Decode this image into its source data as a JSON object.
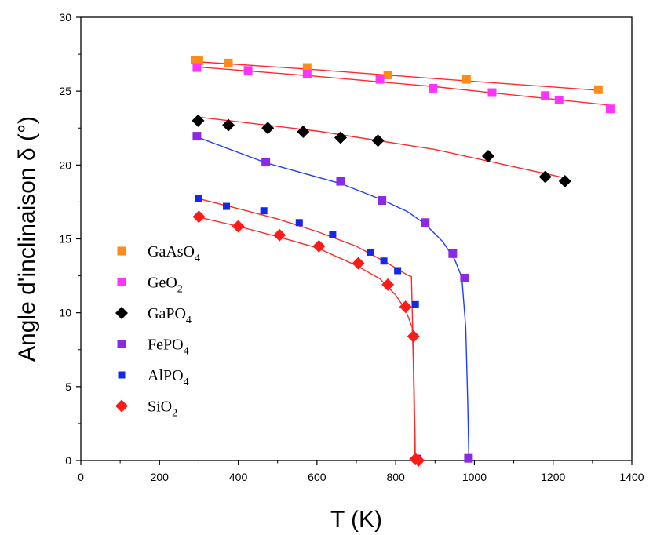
{
  "chart_data": {
    "type": "scatter",
    "xlabel": "T (K)",
    "ylabel": "Angle d'inclinaison δ (°)",
    "xlim": [
      0,
      1400
    ],
    "ylim": [
      0,
      30
    ],
    "xticks": [
      0,
      200,
      400,
      600,
      800,
      1000,
      1200,
      1400
    ],
    "yticks": [
      0,
      5,
      10,
      15,
      20,
      25,
      30
    ],
    "xtick_labels": [
      "0",
      "200",
      "400",
      "600",
      "800",
      "1000",
      "1200",
      "1400"
    ],
    "ytick_labels": [
      "0",
      "5",
      "10",
      "15",
      "20",
      "25",
      "30"
    ],
    "grid": false,
    "legend_position": "left",
    "series": [
      {
        "name": "GaAsO4",
        "label_main": "GaAsO",
        "label_sub": "4",
        "marker": "square",
        "color": "#ff8c1a",
        "fit_color": "#ff2a2a",
        "points": [
          [
            290,
            27.1
          ],
          [
            300,
            27.05
          ],
          [
            375,
            26.9
          ],
          [
            575,
            26.6
          ],
          [
            780,
            26.1
          ],
          [
            980,
            25.8
          ],
          [
            1315,
            25.1
          ]
        ],
        "fit": [
          [
            290,
            27.0
          ],
          [
            600,
            26.45
          ],
          [
            900,
            25.85
          ],
          [
            1320,
            25.05
          ]
        ]
      },
      {
        "name": "GeO2",
        "label_main": "GeO",
        "label_sub": "2",
        "marker": "square",
        "color": "#ff33ff",
        "fit_color": "#ff2a2a",
        "points": [
          [
            295,
            26.6
          ],
          [
            425,
            26.4
          ],
          [
            575,
            26.15
          ],
          [
            760,
            25.8
          ],
          [
            895,
            25.2
          ],
          [
            1045,
            24.9
          ],
          [
            1180,
            24.7
          ],
          [
            1215,
            24.4
          ],
          [
            1345,
            23.8
          ]
        ],
        "fit": [
          [
            290,
            26.65
          ],
          [
            600,
            26.0
          ],
          [
            900,
            25.3
          ],
          [
            1345,
            24.05
          ]
        ]
      },
      {
        "name": "GaPO4",
        "label_main": "GaPO",
        "label_sub": "4",
        "marker": "diamond",
        "color": "#000000",
        "fit_color": "#ff2a2a",
        "points": [
          [
            298,
            23.0
          ],
          [
            375,
            22.7
          ],
          [
            475,
            22.5
          ],
          [
            565,
            22.25
          ],
          [
            660,
            21.85
          ],
          [
            755,
            21.65
          ],
          [
            1035,
            20.6
          ],
          [
            1180,
            19.2
          ],
          [
            1230,
            18.9
          ]
        ],
        "fit": [
          [
            295,
            23.25
          ],
          [
            600,
            22.3
          ],
          [
            900,
            21.05
          ],
          [
            1235,
            19.1
          ]
        ]
      },
      {
        "name": "FePO4",
        "label_main": "FePO",
        "label_sub": "4",
        "marker": "square",
        "color": "#8a2be2",
        "fit_color": "#1f3cff",
        "points": [
          [
            295,
            21.95
          ],
          [
            470,
            20.2
          ],
          [
            660,
            18.9
          ],
          [
            765,
            17.6
          ],
          [
            875,
            16.1
          ],
          [
            945,
            14.0
          ],
          [
            975,
            12.35
          ],
          [
            985,
            0.15
          ]
        ],
        "fit": [
          [
            295,
            21.9
          ],
          [
            470,
            20.15
          ],
          [
            660,
            18.75
          ],
          [
            765,
            17.65
          ],
          [
            830,
            16.85
          ],
          [
            875,
            16.0
          ],
          [
            920,
            14.8
          ],
          [
            950,
            13.6
          ],
          [
            968,
            12.4
          ],
          [
            978,
            9.0
          ],
          [
            983,
            4.0
          ],
          [
            986,
            0.0
          ]
        ]
      },
      {
        "name": "AlPO4",
        "label_main": "AlPO",
        "label_sub": "4",
        "marker": "small-square",
        "color": "#1428e6",
        "fit_color": "#ff2a2a",
        "points": [
          [
            300,
            17.75
          ],
          [
            370,
            17.2
          ],
          [
            465,
            16.9
          ],
          [
            555,
            16.1
          ],
          [
            640,
            15.3
          ],
          [
            735,
            14.1
          ],
          [
            770,
            13.5
          ],
          [
            805,
            12.85
          ],
          [
            850,
            10.55
          ],
          [
            855,
            0.15
          ]
        ],
        "fit": [
          [
            295,
            17.75
          ],
          [
            400,
            17.05
          ],
          [
            500,
            16.35
          ],
          [
            600,
            15.5
          ],
          [
            700,
            14.5
          ],
          [
            780,
            13.35
          ],
          [
            830,
            12.55
          ],
          [
            840,
            12.45
          ],
          [
            844,
            8.0
          ],
          [
            847,
            3.0
          ],
          [
            848,
            0.0
          ]
        ]
      },
      {
        "name": "SiO2",
        "label_main": "SiO",
        "label_sub": "2",
        "marker": "diamond",
        "color": "#ff1a1a",
        "fit_color": "#ff2a2a",
        "points": [
          [
            300,
            16.5
          ],
          [
            400,
            15.85
          ],
          [
            505,
            15.25
          ],
          [
            605,
            14.5
          ],
          [
            705,
            13.35
          ],
          [
            780,
            11.9
          ],
          [
            825,
            10.4
          ],
          [
            845,
            8.4
          ],
          [
            850,
            0.1
          ],
          [
            858,
            0.0
          ]
        ],
        "fit": [
          [
            295,
            16.5
          ],
          [
            400,
            15.85
          ],
          [
            500,
            15.15
          ],
          [
            600,
            14.4
          ],
          [
            700,
            13.2
          ],
          [
            760,
            12.3
          ],
          [
            800,
            11.2
          ],
          [
            825,
            10.2
          ],
          [
            842,
            9.0
          ],
          [
            846,
            6.0
          ],
          [
            849,
            2.0
          ],
          [
            850,
            0.0
          ]
        ]
      }
    ]
  }
}
